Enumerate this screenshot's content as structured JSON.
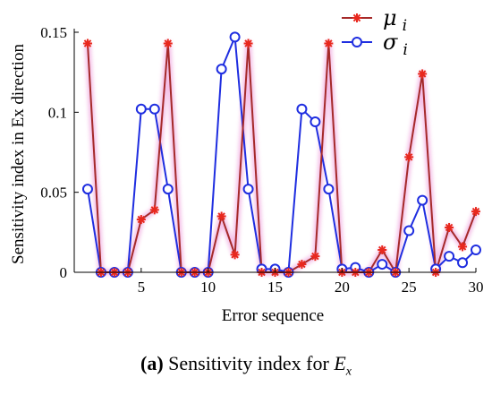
{
  "chart_data": {
    "type": "line",
    "xlabel": "Error sequence",
    "ylabel": "Sensitivity index in Ex direction",
    "xlim": [
      0,
      30
    ],
    "ylim": [
      0,
      0.15
    ],
    "x_ticks": [
      5,
      10,
      15,
      20,
      25,
      30
    ],
    "y_ticks": [
      0,
      0.05,
      0.1,
      0.15
    ],
    "y_tick_labels": [
      "0",
      "0.05",
      "0.1",
      "0.15"
    ],
    "grid": false,
    "legend_position": "top-right",
    "x": [
      1,
      2,
      3,
      4,
      5,
      6,
      7,
      8,
      9,
      10,
      11,
      12,
      13,
      14,
      15,
      16,
      17,
      18,
      19,
      20,
      21,
      22,
      23,
      24,
      25,
      26,
      27,
      28,
      29,
      30
    ],
    "series": [
      {
        "name": "μ i",
        "name_main": "μ",
        "name_sub": "i",
        "color": "#a52a2a",
        "marker_color": "#e8281e",
        "marker": "asterisk",
        "values": [
          0.143,
          0,
          0,
          0,
          0.033,
          0.039,
          0.143,
          0,
          0,
          0,
          0.035,
          0.011,
          0.143,
          0,
          0,
          0,
          0.005,
          0.01,
          0.143,
          0,
          0,
          0,
          0.014,
          0,
          0.072,
          0.124,
          0,
          0.028,
          0.016,
          0.038
        ]
      },
      {
        "name": "σ i",
        "name_main": "σ",
        "name_sub": "i",
        "color": "#1f2ee0",
        "marker_color": "#1f2ee0",
        "marker": "circle",
        "values": [
          0.052,
          0,
          0,
          0,
          0.102,
          0.102,
          0.052,
          0,
          0,
          0,
          0.127,
          0.147,
          0.052,
          0.002,
          0.002,
          0,
          0.102,
          0.094,
          0.052,
          0.002,
          0.003,
          0,
          0.005,
          0,
          0.026,
          0.045,
          0.002,
          0.01,
          0.006,
          0.014
        ]
      }
    ]
  },
  "caption": {
    "label": "(a)",
    "text": "Sensitivity index for",
    "var_main": "E",
    "var_sub": "x"
  }
}
